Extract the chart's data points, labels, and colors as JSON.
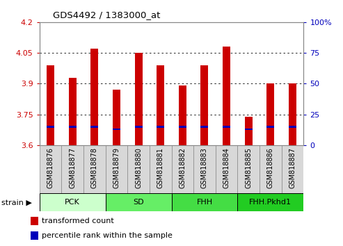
{
  "title": "GDS4492 / 1383000_at",
  "samples": [
    "GSM818876",
    "GSM818877",
    "GSM818878",
    "GSM818879",
    "GSM818880",
    "GSM818881",
    "GSM818882",
    "GSM818883",
    "GSM818884",
    "GSM818885",
    "GSM818886",
    "GSM818887"
  ],
  "transformed_counts": [
    3.99,
    3.93,
    4.07,
    3.87,
    4.05,
    3.99,
    3.89,
    3.99,
    4.08,
    3.74,
    3.9,
    3.9
  ],
  "percentile_rank_values": [
    15,
    15,
    15,
    13,
    15,
    15,
    15,
    15,
    15,
    13,
    15,
    15
  ],
  "ymin": 3.6,
  "ymax": 4.2,
  "yticks_left": [
    3.6,
    3.75,
    3.9,
    4.05,
    4.2
  ],
  "right_yticks": [
    0,
    25,
    50,
    75,
    100
  ],
  "bar_color": "#cc0000",
  "percentile_color": "#0000bb",
  "groups": [
    {
      "label": "PCK",
      "start": 0,
      "end": 3,
      "color": "#ccffcc"
    },
    {
      "label": "SD",
      "start": 3,
      "end": 6,
      "color": "#66ee66"
    },
    {
      "label": "FHH",
      "start": 6,
      "end": 9,
      "color": "#44dd44"
    },
    {
      "label": "FHH.Pkhd1",
      "start": 9,
      "end": 12,
      "color": "#22cc22"
    }
  ],
  "legend_items": [
    {
      "label": "transformed count",
      "color": "#cc0000"
    },
    {
      "label": "percentile rank within the sample",
      "color": "#0000bb"
    }
  ],
  "bar_width": 0.35,
  "bar_base": 3.6,
  "tick_color_left": "#cc0000",
  "tick_color_right": "#0000bb",
  "bg_color": "#ffffff",
  "sample_box_color": "#d8d8d8",
  "sample_box_edge": "#888888"
}
